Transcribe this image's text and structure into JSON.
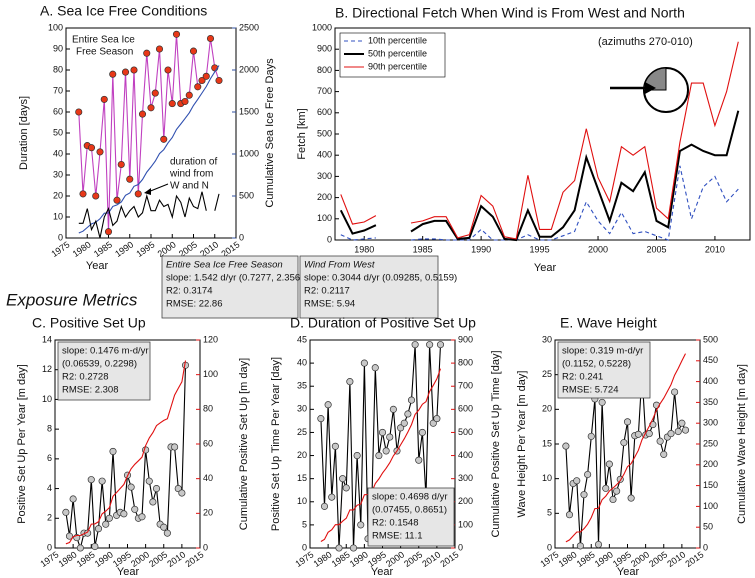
{
  "section_heading": "Exposure Metrics",
  "chart_data": [
    {
      "type": "line",
      "title": "A. Sea Ice Free Conditions",
      "x_label": "Year",
      "y_label": "Duration [days]",
      "y2_label": "Cumulative Sea Ice Free Days",
      "y_color": "#c030b0",
      "y2_color": "#3050a0",
      "xlim": [
        1975,
        2015
      ],
      "xticks": [
        1975,
        1980,
        1985,
        1990,
        1995,
        2000,
        2005,
        2010,
        2015
      ],
      "ylim": [
        0,
        100
      ],
      "yticks": [
        0,
        10,
        20,
        30,
        40,
        50,
        60,
        70,
        80,
        90,
        100
      ],
      "y2lim": [
        0,
        2500
      ],
      "y2ticks": [
        0,
        500,
        1000,
        1500,
        2000,
        2500
      ],
      "x": [
        1978,
        1979,
        1980,
        1981,
        1982,
        1983,
        1984,
        1985,
        1986,
        1987,
        1988,
        1989,
        1990,
        1991,
        1992,
        1993,
        1994,
        1995,
        1996,
        1997,
        1998,
        1999,
        2000,
        2001,
        2002,
        2003,
        2004,
        2005,
        2006,
        2007,
        2008,
        2009,
        2010,
        2011
      ],
      "series": [
        {
          "name": "Entire Sea Ice Free Season",
          "color": "#c040c0",
          "marker_color": "#e83818",
          "values": [
            60,
            21,
            44,
            43,
            20,
            41,
            66,
            3,
            78,
            18,
            35,
            79,
            28,
            80,
            21,
            59,
            88,
            62,
            69,
            90,
            47,
            80,
            64,
            97,
            64,
            65,
            68,
            89,
            72,
            75,
            77,
            95,
            81,
            75
          ]
        },
        {
          "name": "Cumulative Sea Ice Free Days",
          "color": "#3050b0",
          "axis": "y2",
          "values": [
            60,
            81,
            125,
            168,
            188,
            229,
            295,
            298,
            376,
            394,
            429,
            508,
            536,
            616,
            637,
            696,
            784,
            846,
            915,
            1005,
            1052,
            1132,
            1196,
            1293,
            1357,
            1422,
            1490,
            1579,
            1651,
            1726,
            1803,
            1898,
            1979,
            2054
          ]
        },
        {
          "name": "duration of wind from W and N",
          "color": "#000000",
          "values": [
            7,
            7,
            14,
            4,
            8,
            0,
            10,
            14,
            6,
            8,
            15,
            10,
            13,
            15,
            10,
            12,
            20,
            13,
            13,
            18,
            15,
            16,
            10,
            20,
            17,
            10,
            19,
            15,
            14,
            22,
            13,
            null,
            13,
            21
          ]
        }
      ],
      "annotations": [
        {
          "text": "Entire Sea Ice",
          "color": "#c040c0"
        },
        {
          "text": "Free Season",
          "color": "#c040c0"
        },
        {
          "text": "duration of",
          "color": "#000000"
        },
        {
          "text": "wind from",
          "color": "#000000"
        },
        {
          "text": "W and  N",
          "color": "#000000"
        }
      ],
      "stats_boxes": [
        {
          "title": "Entire Sea Ice Free Season",
          "lines": [
            "slope: 1.542 d/yr  (0.7277, 2.356)",
            "R2: 0.3174",
            "RMSE: 22.86"
          ]
        },
        {
          "title": "Wind From West",
          "lines": [
            "slope: 0.3044 d/yr (0.09285, 0.5159)",
            "R2: 0.2117",
            "RMSE: 5.94"
          ]
        }
      ]
    },
    {
      "type": "line",
      "title": "B. Directional Fetch When Wind is From West and North",
      "x_label": "Year",
      "y_label": "Fetch [km]",
      "xlim": [
        1977.5,
        2013
      ],
      "xticks": [
        1980,
        1985,
        1990,
        1995,
        2000,
        2005,
        2010
      ],
      "ylim": [
        0,
        1000
      ],
      "yticks": [
        0,
        100,
        200,
        300,
        400,
        500,
        600,
        700,
        800,
        900,
        1000
      ],
      "x": [
        1978,
        1979,
        1980,
        1981,
        1982,
        1983,
        1984,
        1985,
        1986,
        1987,
        1988,
        1989,
        1990,
        1991,
        1992,
        1993,
        1994,
        1995,
        1996,
        1997,
        1998,
        1999,
        2000,
        2001,
        2002,
        2003,
        2004,
        2005,
        2006,
        2007,
        2008,
        2009,
        2010,
        2011,
        2012
      ],
      "legend": "upper left",
      "series": [
        {
          "name": "10th percentile",
          "color": "#3050c0",
          "linestyle": "dashed",
          "values": [
            25,
            0,
            5,
            10,
            null,
            null,
            0,
            5,
            5,
            0,
            0,
            0,
            50,
            0,
            0,
            0,
            25,
            0,
            0,
            20,
            40,
            180,
            90,
            30,
            130,
            30,
            40,
            20,
            0,
            350,
            100,
            250,
            300,
            180,
            240
          ]
        },
        {
          "name": "50th percentile",
          "color": "#000000",
          "width": 2,
          "values": [
            140,
            30,
            45,
            70,
            null,
            null,
            40,
            75,
            90,
            90,
            5,
            10,
            160,
            110,
            5,
            0,
            140,
            15,
            15,
            60,
            140,
            390,
            240,
            90,
            270,
            230,
            320,
            90,
            60,
            420,
            450,
            420,
            400,
            400,
            610
          ]
        },
        {
          "name": "90th percentile",
          "color": "#e01010",
          "values": [
            215,
            75,
            85,
            115,
            null,
            null,
            80,
            90,
            110,
            110,
            10,
            25,
            210,
            160,
            15,
            5,
            305,
            50,
            50,
            225,
            280,
            525,
            295,
            180,
            440,
            400,
            440,
            150,
            100,
            460,
            740,
            740,
            540,
            700,
            935
          ]
        }
      ],
      "annotations": [
        {
          "text": "(azimuths 270-010)",
          "color": "#000000"
        }
      ]
    },
    {
      "type": "line",
      "title": "C. Positive Set Up",
      "x_label": "Year",
      "y_label": "Positive Set Up Per Year [m day]",
      "y2_label": "Cumulative Positive Set Up [m day]",
      "y_color": "#111111",
      "y2_color": "#e01010",
      "xlim": [
        1975,
        2015
      ],
      "xticks": [
        1975,
        1980,
        1985,
        1990,
        1995,
        2000,
        2005,
        2010,
        2015
      ],
      "ylim": [
        0,
        14
      ],
      "yticks": [
        0,
        2,
        4,
        6,
        8,
        10,
        12,
        14
      ],
      "y2lim": [
        0,
        120
      ],
      "y2ticks": [
        0,
        20,
        40,
        60,
        80,
        100,
        120
      ],
      "x": [
        1978,
        1979,
        1980,
        1981,
        1982,
        1983,
        1984,
        1985,
        1986,
        1987,
        1988,
        1989,
        1990,
        1991,
        1992,
        1993,
        1994,
        1995,
        1996,
        1997,
        1998,
        1999,
        2000,
        2001,
        2002,
        2003,
        2004,
        2005,
        2006,
        2007,
        2008,
        2009,
        2010,
        2011
      ],
      "series": [
        {
          "name": "Positive Set Up Per Year",
          "color": "#000000",
          "marker_color": "#c8c8c8",
          "values": [
            2.4,
            0.8,
            3.3,
            0.7,
            0,
            1,
            1,
            4.6,
            0.1,
            1.3,
            4.5,
            1.6,
            2,
            6.5,
            2.2,
            2.4,
            2.3,
            4.9,
            4.1,
            2.6,
            2,
            2.1,
            6.6,
            4.5,
            3.1,
            4,
            1.6,
            1.4,
            1,
            6.8,
            6.8,
            4,
            3.7,
            12.3
          ]
        },
        {
          "name": "Cumulative Positive Set Up",
          "color": "#e01010",
          "axis": "y2",
          "values": [
            2.4,
            3.2,
            6.5,
            7.2,
            7.2,
            8.2,
            9.2,
            13.8,
            13.9,
            15.2,
            19.7,
            21.3,
            23.3,
            29.8,
            32,
            34.4,
            36.7,
            41.6,
            45.7,
            48.3,
            50.3,
            52.4,
            59,
            63.5,
            66.6,
            70.6,
            72.2,
            73.6,
            74.6,
            81.4,
            88.2,
            92.2,
            95.9,
            108.2
          ]
        }
      ],
      "stats_boxes": [
        {
          "lines": [
            "slope: 0.1476 m-d/yr",
            "(0.06539, 0.2298)",
            "R2: 0.2728",
            "RMSE: 2.308"
          ]
        }
      ]
    },
    {
      "type": "line",
      "title": "D. Duration of Positive Set Up",
      "x_label": "Year",
      "y_label": "Positive Set Up Time Per Year [day]",
      "y2_label": "Cumulative Positive Set Up Time [day]",
      "y_color": "#111111",
      "y2_color": "#e01010",
      "xlim": [
        1975,
        2015
      ],
      "xticks": [
        1975,
        1980,
        1985,
        1990,
        1995,
        2000,
        2005,
        2010,
        2015
      ],
      "ylim": [
        0,
        45
      ],
      "yticks": [
        0,
        5,
        10,
        15,
        20,
        25,
        30,
        35,
        40,
        45
      ],
      "y2lim": [
        0,
        900
      ],
      "y2ticks": [
        0,
        100,
        200,
        300,
        400,
        500,
        600,
        700,
        800,
        900
      ],
      "x": [
        1978,
        1979,
        1980,
        1981,
        1982,
        1983,
        1984,
        1985,
        1986,
        1987,
        1988,
        1989,
        1990,
        1991,
        1992,
        1993,
        1994,
        1995,
        1996,
        1997,
        1998,
        1999,
        2000,
        2001,
        2002,
        2003,
        2004,
        2005,
        2006,
        2007,
        2008,
        2009,
        2010,
        2011
      ],
      "series": [
        {
          "name": "Positive Set Up Time Per Year",
          "color": "#000000",
          "marker_color": "#c8c8c8",
          "values": [
            28,
            9,
            31,
            11,
            22,
            0,
            15,
            13,
            36,
            0,
            20,
            5,
            40,
            2,
            8,
            39,
            20,
            25,
            21,
            24,
            30,
            21,
            26,
            27,
            29,
            32,
            44,
            19,
            25,
            11,
            44,
            27,
            28,
            44
          ]
        },
        {
          "name": "Cumulative Positive Set Up Time",
          "color": "#e01010",
          "axis": "y2",
          "values": [
            28,
            37,
            68,
            79,
            101,
            101,
            116,
            129,
            165,
            165,
            185,
            190,
            230,
            232,
            240,
            279,
            299,
            324,
            345,
            369,
            399,
            420,
            446,
            473,
            502,
            534,
            578,
            597,
            622,
            633,
            677,
            704,
            732,
            776
          ]
        }
      ],
      "stats_boxes": [
        {
          "lines": [
            "slope: 0.4698 d/yr",
            "(0.07455, 0.8651)",
            "R2: 0.1548",
            "RMSE: 11.1"
          ]
        }
      ]
    },
    {
      "type": "line",
      "title": "E. Wave Height",
      "x_label": "Year",
      "y_label": "Wave Height Per Year [m day]",
      "y2_label": "Cumulative Wave Height [m day]",
      "y_color": "#111111",
      "y2_color": "#e01010",
      "xlim": [
        1975,
        2015
      ],
      "xticks": [
        1975,
        1980,
        1985,
        1990,
        1995,
        2000,
        2005,
        2010,
        2015
      ],
      "ylim": [
        0,
        30
      ],
      "yticks": [
        0,
        5,
        10,
        15,
        20,
        25,
        30
      ],
      "y2lim": [
        0,
        500
      ],
      "y2ticks": [
        0,
        50,
        100,
        150,
        200,
        250,
        300,
        350,
        400,
        450,
        500
      ],
      "x": [
        1978,
        1979,
        1980,
        1981,
        1982,
        1983,
        1984,
        1985,
        1986,
        1987,
        1988,
        1989,
        1990,
        1991,
        1992,
        1993,
        1994,
        1995,
        1996,
        1997,
        1998,
        1999,
        2000,
        2001,
        2002,
        2003,
        2004,
        2005,
        2006,
        2007,
        2008,
        2009,
        2010,
        2011
      ],
      "series": [
        {
          "name": "Wave Height Per Year",
          "color": "#000000",
          "marker_color": "#c8c8c8",
          "values": [
            14.7,
            4.8,
            9.3,
            9.7,
            0.3,
            7.7,
            10.6,
            16.1,
            21.5,
            0.5,
            21,
            8.6,
            12.1,
            7,
            8.2,
            9.9,
            15.2,
            18.2,
            7.2,
            16.2,
            16.4,
            25.1,
            16.3,
            16.5,
            17.8,
            20.6,
            15.4,
            13.5,
            16,
            16.5,
            22.5,
            16.8,
            18,
            17
          ]
        },
        {
          "name": "Cumulative Wave Height",
          "color": "#e01010",
          "axis": "y2",
          "values": [
            14.7,
            19.5,
            28.8,
            38.5,
            38.8,
            46.5,
            57.1,
            73.2,
            94.7,
            95.2,
            116.2,
            124.8,
            136.9,
            143.9,
            152.1,
            162,
            177.2,
            195.4,
            202.6,
            218.8,
            235.2,
            260.3,
            276.6,
            293.1,
            310.9,
            331.5,
            346.9,
            360.4,
            376.4,
            392.9,
            415.4,
            432.2,
            450.2,
            467.2
          ]
        }
      ],
      "stats_boxes": [
        {
          "lines": [
            "slope: 0.319 m-d/yr",
            "(0.1152, 0.5228)",
            "R2: 0.241",
            "RMSE: 5.724"
          ]
        }
      ]
    }
  ]
}
